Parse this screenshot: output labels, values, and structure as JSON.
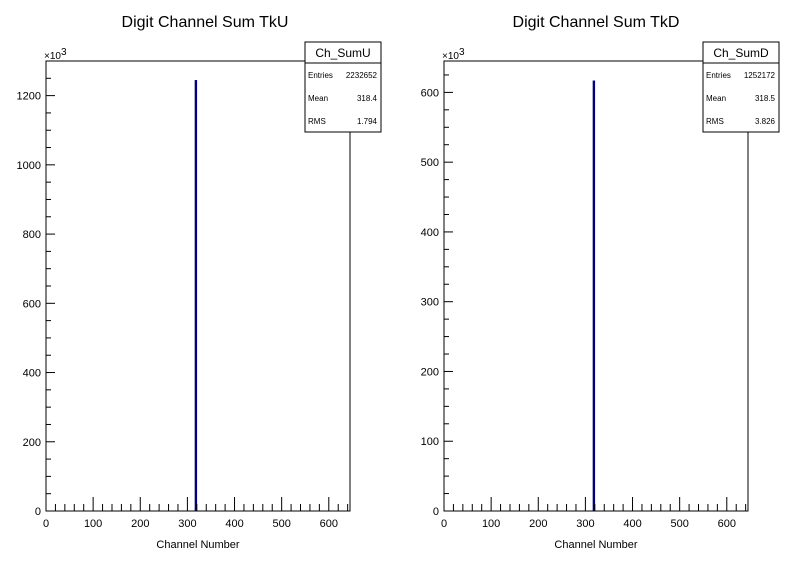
{
  "chart_data": [
    {
      "type": "bar",
      "title": "Digit Channel Sum TkU",
      "xlabel": "Channel Number",
      "ylabel": "",
      "xlim": [
        0,
        645
      ],
      "ylim": [
        0,
        1300
      ],
      "y_multiplier": "×10",
      "y_multiplier_exp": "3",
      "xticks": [
        0,
        100,
        200,
        300,
        400,
        500,
        600
      ],
      "yticks": [
        0,
        200,
        400,
        600,
        800,
        1000,
        1200
      ],
      "series": [
        {
          "x": [
            318
          ],
          "values": [
            1245
          ],
          "color": "#000080"
        }
      ],
      "stats": {
        "name": "Ch_SumU",
        "rows": [
          {
            "label": "Entries",
            "value": "2232652"
          },
          {
            "label": "Mean",
            "value": "318.4"
          },
          {
            "label": "RMS",
            "value": "1.794"
          }
        ]
      }
    },
    {
      "type": "bar",
      "title": "Digit Channel Sum TkD",
      "xlabel": "Channel Number",
      "ylabel": "",
      "xlim": [
        0,
        645
      ],
      "ylim": [
        0,
        645
      ],
      "y_multiplier": "×10",
      "y_multiplier_exp": "3",
      "xticks": [
        0,
        100,
        200,
        300,
        400,
        500,
        600
      ],
      "yticks": [
        0,
        100,
        200,
        300,
        400,
        500,
        600
      ],
      "series": [
        {
          "x": [
            318
          ],
          "values": [
            617
          ],
          "color": "#000080"
        }
      ],
      "stats": {
        "name": "Ch_SumD",
        "rows": [
          {
            "label": "Entries",
            "value": "1252172"
          },
          {
            "label": "Mean",
            "value": "318.5"
          },
          {
            "label": "RMS",
            "value": "3.826"
          }
        ]
      }
    }
  ]
}
